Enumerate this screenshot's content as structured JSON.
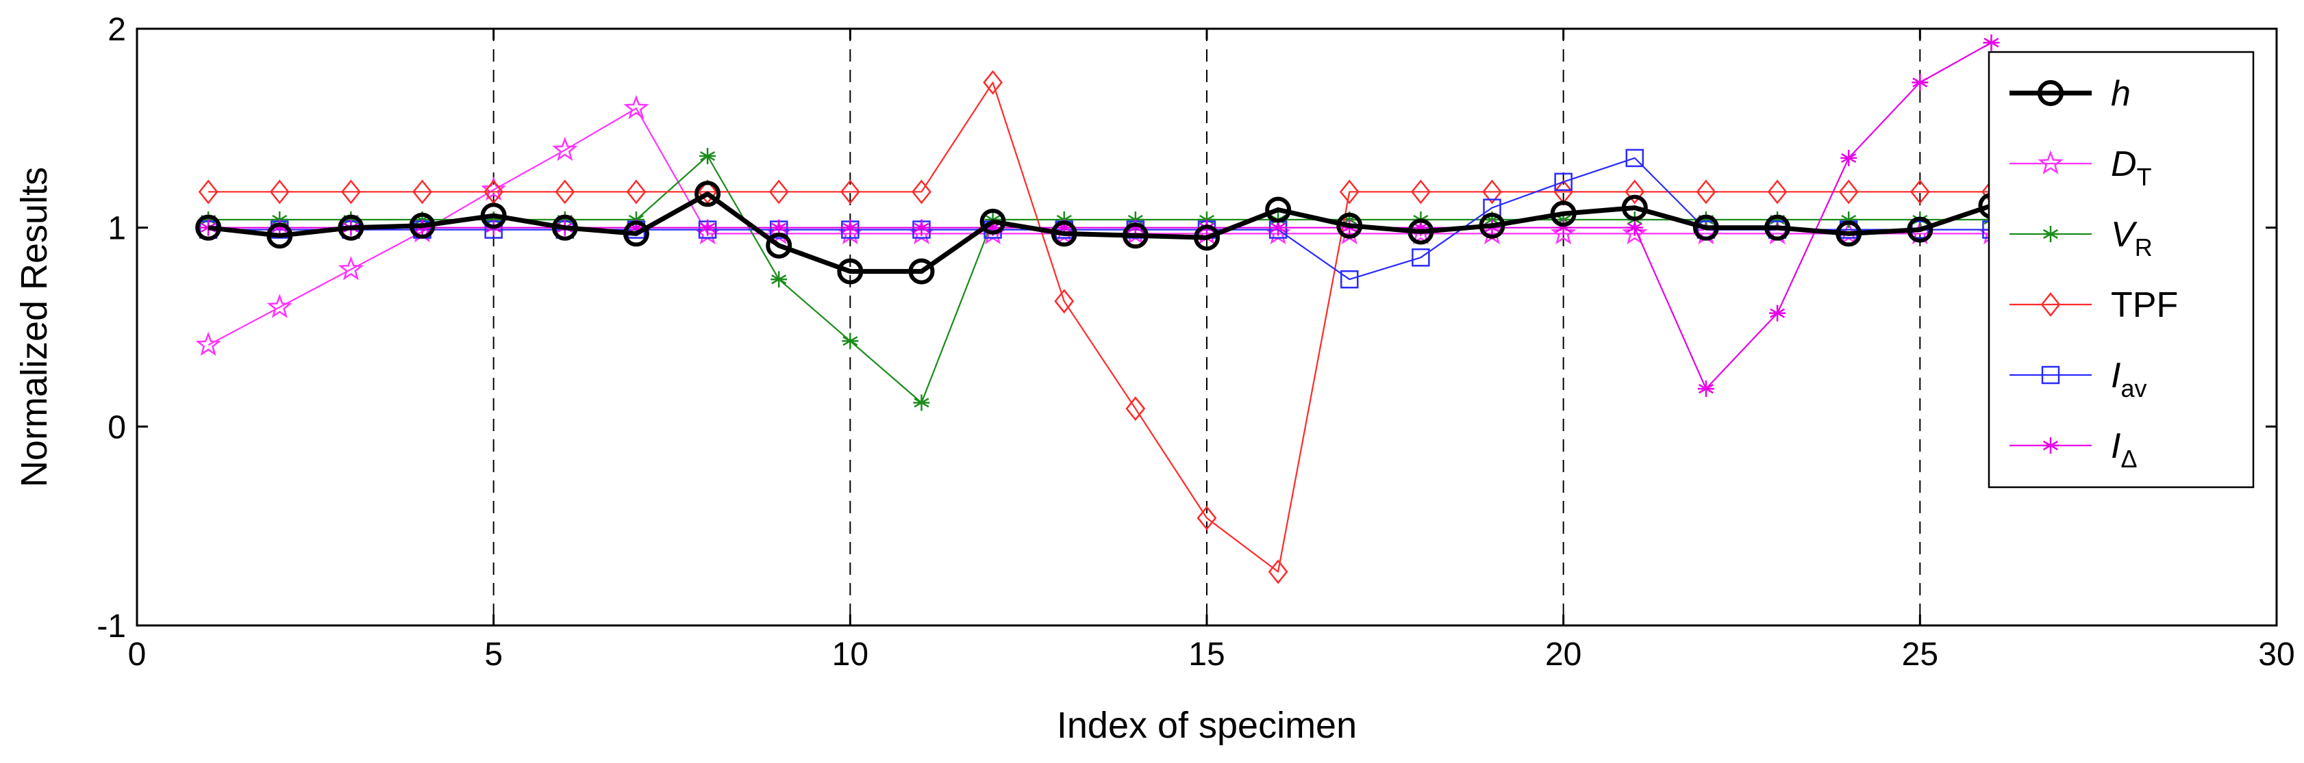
{
  "chart_data": {
    "type": "line",
    "title": "",
    "xlabel": "Index of specimen",
    "ylabel": "Normalized Results",
    "xlim": [
      0,
      30
    ],
    "ylim": [
      -1,
      2
    ],
    "xticks": [
      0,
      5,
      10,
      15,
      20,
      25,
      30
    ],
    "yticks": [
      -1,
      0,
      1,
      2
    ],
    "xtick_labels": [
      "0",
      "5",
      "10",
      "15",
      "20",
      "25",
      "30"
    ],
    "ytick_labels": [
      "-1",
      "0",
      "1",
      "2"
    ],
    "vertical_dashed_lines": [
      5,
      10,
      15,
      20,
      25
    ],
    "grid": false,
    "legend_position": "right",
    "x": [
      1,
      2,
      3,
      4,
      5,
      6,
      7,
      8,
      9,
      10,
      11,
      12,
      13,
      14,
      15,
      16,
      17,
      18,
      19,
      20,
      21,
      22,
      23,
      24,
      25,
      26
    ],
    "series": [
      {
        "key": "h",
        "name": "h",
        "label_main": "h",
        "label_sub": "",
        "italic": true,
        "color": "#000000",
        "marker": "circle",
        "thick": true,
        "values": [
          1.0,
          0.96,
          1.0,
          1.01,
          1.06,
          1.0,
          0.97,
          1.17,
          0.91,
          0.78,
          0.78,
          1.03,
          0.97,
          0.96,
          0.95,
          1.09,
          1.01,
          0.98,
          1.01,
          1.07,
          1.1,
          1.0,
          1.0,
          0.97,
          0.99,
          1.11
        ]
      },
      {
        "key": "DT",
        "name": "D_T",
        "label_main": "D",
        "label_sub": "T",
        "italic": true,
        "color": "#ff33ff",
        "marker": "star",
        "thick": false,
        "values": [
          0.41,
          0.6,
          0.79,
          0.98,
          1.19,
          1.39,
          1.6,
          0.97,
          0.97,
          0.97,
          0.97,
          0.97,
          0.97,
          0.97,
          0.97,
          0.97,
          0.97,
          0.97,
          0.97,
          0.97,
          0.97,
          0.97,
          0.97,
          0.97,
          0.97,
          0.97
        ]
      },
      {
        "key": "VR",
        "name": "V_R",
        "label_main": "V",
        "label_sub": "R",
        "italic": true,
        "color": "#1a8c1a",
        "marker": "asterisk",
        "thick": false,
        "values": [
          1.04,
          1.04,
          1.04,
          1.04,
          1.04,
          1.04,
          1.04,
          1.36,
          0.74,
          0.43,
          0.12,
          1.04,
          1.04,
          1.04,
          1.04,
          1.04,
          1.04,
          1.04,
          1.04,
          1.04,
          1.04,
          1.04,
          1.04,
          1.04,
          1.04,
          1.04
        ]
      },
      {
        "key": "TPF",
        "name": "TPF",
        "label_main": "TPF",
        "label_sub": "",
        "italic": false,
        "color": "#ff2a2a",
        "marker": "diamond",
        "thick": false,
        "values": [
          1.18,
          1.18,
          1.18,
          1.18,
          1.18,
          1.18,
          1.18,
          1.18,
          1.18,
          1.18,
          1.18,
          1.73,
          0.63,
          0.09,
          -0.46,
          -0.73,
          1.18,
          1.18,
          1.18,
          1.18,
          1.18,
          1.18,
          1.18,
          1.18,
          1.18,
          1.18
        ]
      },
      {
        "key": "Iav",
        "name": "I_av",
        "label_main": "I",
        "label_sub": "av",
        "italic": true,
        "color": "#2a2aff",
        "marker": "square",
        "thick": false,
        "values": [
          0.99,
          0.99,
          0.99,
          0.99,
          0.99,
          0.99,
          0.99,
          0.99,
          0.99,
          0.99,
          0.99,
          0.99,
          0.99,
          0.99,
          0.99,
          0.99,
          0.74,
          0.85,
          1.1,
          1.23,
          1.35,
          0.99,
          0.99,
          0.99,
          0.99,
          0.99
        ]
      },
      {
        "key": "Idelta",
        "name": "I_Δ",
        "label_main": "I",
        "label_sub": "Δ",
        "italic": true,
        "color": "#e600e6",
        "marker": "asterisk",
        "thick": false,
        "values": [
          1.0,
          1.0,
          1.0,
          1.0,
          1.0,
          1.0,
          1.0,
          1.0,
          1.0,
          1.0,
          1.0,
          1.0,
          1.0,
          1.0,
          1.0,
          1.0,
          1.0,
          1.0,
          1.0,
          1.0,
          1.0,
          0.19,
          0.57,
          1.35,
          1.73,
          1.93
        ]
      }
    ]
  }
}
